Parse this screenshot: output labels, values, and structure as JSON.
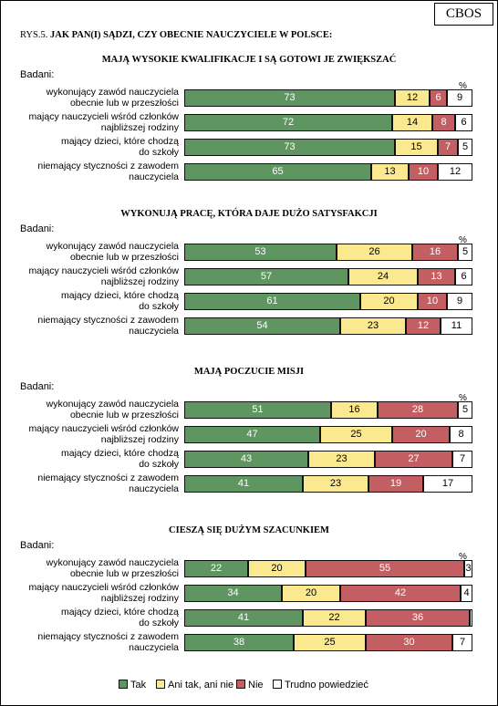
{
  "brand": "CBOS",
  "figure": {
    "number": "RYS.5.",
    "title": "JAK PAN(I) SĄDZI, CZY OBECNIE NAUCZYCIELE W POLSCE:"
  },
  "labels": {
    "respondents": "Badani:",
    "percent": "%"
  },
  "colors": {
    "tak": "#5f9561",
    "ani": "#fbe98f",
    "nie": "#c35f63",
    "trudno": "#ffffff"
  },
  "chart_data": {
    "type": "bar",
    "stacked": true,
    "orientation": "horizontal",
    "unit": "%",
    "legend_position": "bottom",
    "grid": false,
    "xlim": [
      0,
      100
    ],
    "categories": [
      [
        "wykonujący zawód nauczyciela",
        "obecnie lub w przeszłości"
      ],
      [
        "mający nauczycieli wśród członków",
        "najbliższej rodziny"
      ],
      [
        "mający dzieci, które chodzą",
        "do szkoły"
      ],
      [
        "niemający styczności z zawodem",
        "nauczyciela"
      ]
    ],
    "legend": [
      "Tak",
      "Ani tak, ani nie",
      "Nie",
      "Trudno powiedzieć"
    ],
    "panels": [
      {
        "title": "MAJĄ WYSOKIE KWALIFIKACJE I SĄ GOTOWI JE ZWIĘKSZAĆ",
        "series": [
          {
            "name": "Tak",
            "values": [
              73,
              72,
              73,
              65
            ]
          },
          {
            "name": "Ani tak, ani nie",
            "values": [
              12,
              14,
              15,
              13
            ]
          },
          {
            "name": "Nie",
            "values": [
              6,
              8,
              7,
              10
            ]
          },
          {
            "name": "Trudno powiedzieć",
            "values": [
              9,
              6,
              5,
              12
            ]
          }
        ]
      },
      {
        "title": "WYKONUJĄ PRACĘ, KTÓRA DAJE DUŻO SATYSFAKCJI",
        "series": [
          {
            "name": "Tak",
            "values": [
              53,
              57,
              61,
              54
            ]
          },
          {
            "name": "Ani tak, ani nie",
            "values": [
              26,
              24,
              20,
              23
            ]
          },
          {
            "name": "Nie",
            "values": [
              16,
              13,
              10,
              12
            ]
          },
          {
            "name": "Trudno powiedzieć",
            "values": [
              5,
              6,
              9,
              11
            ]
          }
        ]
      },
      {
        "title": "MAJĄ POCZUCIE MISJI",
        "series": [
          {
            "name": "Tak",
            "values": [
              51,
              47,
              43,
              41
            ]
          },
          {
            "name": "Ani tak, ani nie",
            "values": [
              16,
              25,
              23,
              23
            ]
          },
          {
            "name": "Nie",
            "values": [
              28,
              20,
              27,
              19
            ]
          },
          {
            "name": "Trudno powiedzieć",
            "values": [
              5,
              8,
              7,
              17
            ]
          }
        ]
      },
      {
        "title": "CIESZĄ SIĘ DUŻYM SZACUNKIEM",
        "series": [
          {
            "name": "Tak",
            "values": [
              22,
              34,
              41,
              38
            ]
          },
          {
            "name": "Ani tak, ani nie",
            "values": [
              20,
              20,
              22,
              25
            ]
          },
          {
            "name": "Nie",
            "values": [
              55,
              42,
              36,
              30
            ]
          },
          {
            "name": "Trudno powiedzieć",
            "values": [
              3,
              4,
              1,
              7
            ]
          }
        ]
      }
    ],
    "hidden_labels": [
      [
        3,
        2,
        3
      ]
    ]
  }
}
